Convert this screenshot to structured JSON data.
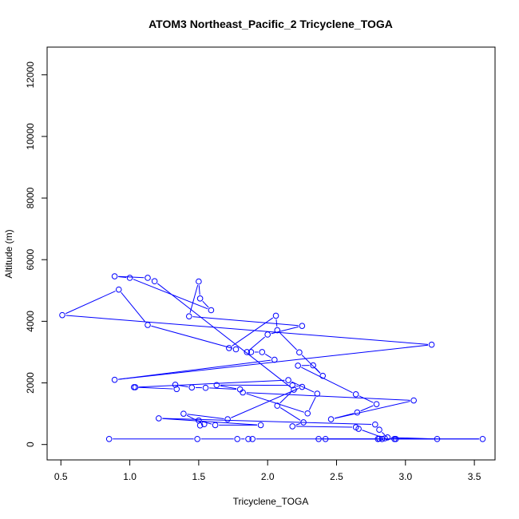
{
  "chart_data": {
    "type": "line",
    "title": "ATOM3 Northeast_Pacific_2 Tricyclene_TOGA",
    "xlabel": "Tricyclene_TOGA",
    "ylabel": "Altitude (m)",
    "xlim": [
      0.4,
      3.65
    ],
    "ylim": [
      -500,
      12900
    ],
    "xticks": [
      0.5,
      1.0,
      1.5,
      2.0,
      2.5,
      3.0,
      3.5
    ],
    "xtick_labels": [
      "0.5",
      "1.0",
      "1.5",
      "2.0",
      "2.5",
      "3.0",
      "3.5"
    ],
    "yticks": [
      0,
      2000,
      4000,
      6000,
      8000,
      10000,
      12000
    ],
    "ytick_labels": [
      "0",
      "2000",
      "4000",
      "6000",
      "8000",
      "10000",
      "12000"
    ],
    "grid": false,
    "series_color": "#0000ff",
    "series": [
      {
        "points": [
          [
            0.85,
            180
          ],
          [
            1.49,
            180
          ],
          [
            1.78,
            180
          ],
          [
            1.86,
            180
          ],
          [
            1.89,
            180
          ],
          [
            3.56,
            180
          ],
          [
            2.42,
            180
          ],
          [
            2.37,
            180
          ],
          [
            2.8,
            180
          ],
          [
            2.83,
            180
          ],
          [
            2.93,
            180
          ],
          [
            2.92,
            180
          ],
          [
            3.23,
            180
          ],
          [
            2.87,
            230
          ],
          [
            2.81,
            480
          ],
          [
            2.78,
            650
          ],
          [
            1.21,
            850
          ],
          [
            1.95,
            630
          ],
          [
            1.62,
            630
          ],
          [
            1.5,
            780
          ],
          [
            1.51,
            620
          ],
          [
            1.54,
            660
          ],
          [
            1.39,
            1000
          ],
          [
            1.71,
            820
          ],
          [
            2.25,
            1870
          ],
          [
            2.18,
            1920
          ],
          [
            1.63,
            1930
          ],
          [
            1.8,
            1790
          ],
          [
            1.55,
            1840
          ],
          [
            1.45,
            1850
          ],
          [
            1.33,
            1940
          ],
          [
            1.34,
            1800
          ],
          [
            1.03,
            1860
          ],
          [
            1.04,
            1860
          ],
          [
            2.15,
            2090
          ],
          [
            2.36,
            1650
          ],
          [
            2.29,
            1010
          ],
          [
            1.82,
            1690
          ],
          [
            3.06,
            1430
          ],
          [
            2.46,
            820
          ],
          [
            2.65,
            1040
          ],
          [
            2.79,
            1310
          ],
          [
            2.64,
            1630
          ],
          [
            2.22,
            2560
          ],
          [
            2.33,
            2570
          ],
          [
            2.4,
            2230
          ],
          [
            2.23,
            2990
          ],
          [
            2.07,
            3710
          ],
          [
            2.06,
            4180
          ],
          [
            1.72,
            3130
          ],
          [
            1.77,
            3090
          ],
          [
            1.13,
            3880
          ],
          [
            0.92,
            5030
          ],
          [
            0.51,
            4200
          ],
          [
            3.19,
            3240
          ],
          [
            0.89,
            2100
          ],
          [
            2.05,
            2750
          ],
          [
            1.96,
            3000
          ],
          [
            1.88,
            3000
          ],
          [
            1.85,
            3000
          ],
          [
            2.0,
            3570
          ],
          [
            2.25,
            3850
          ],
          [
            1.43,
            4160
          ],
          [
            1.5,
            5290
          ],
          [
            1.51,
            4740
          ],
          [
            1.59,
            4360
          ],
          [
            1.0,
            5410
          ],
          [
            0.89,
            5460
          ],
          [
            1.13,
            5410
          ],
          [
            1.18,
            5300
          ],
          [
            2.19,
            1780
          ],
          [
            2.07,
            1260
          ],
          [
            2.26,
            720
          ],
          [
            2.18,
            590
          ],
          [
            2.64,
            560
          ],
          [
            2.66,
            510
          ],
          [
            2.85,
            200
          ],
          [
            2.81,
            190
          ]
        ]
      }
    ]
  }
}
